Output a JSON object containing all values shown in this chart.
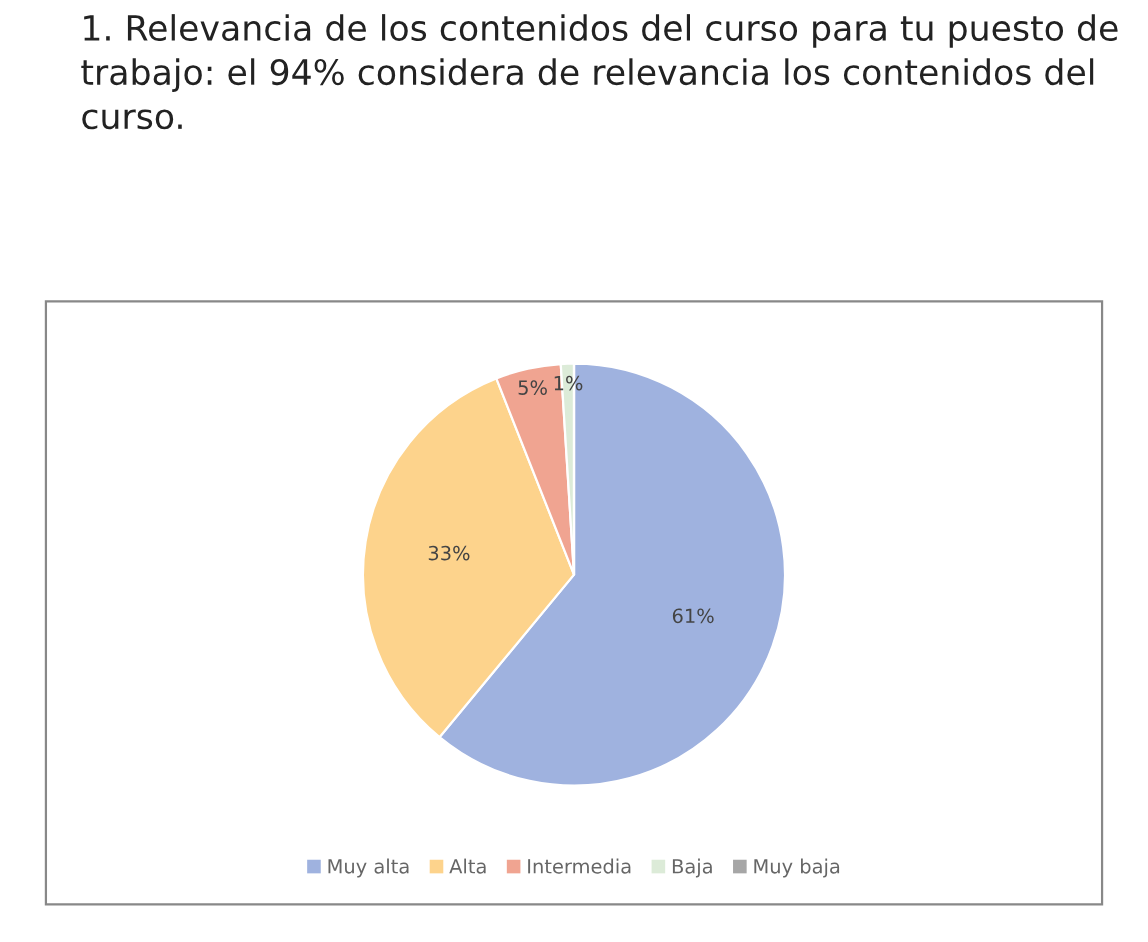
{
  "chart_data": {
    "type": "pie",
    "title": "1. Relevancia de los contenidos del curso para tu puesto de trabajo: el 94% considera de relevancia los contenidos del curso.",
    "categories": [
      "Muy alta",
      "Alta",
      "Intermedia",
      "Baja",
      "Muy baja"
    ],
    "values": [
      61,
      33,
      5,
      1,
      0
    ],
    "value_labels": [
      "61%",
      "33%",
      "5%",
      "1%",
      null
    ],
    "colors": [
      "#9fb2df",
      "#fdd38c",
      "#f0a491",
      "#dcebd8",
      "#a6a6a6"
    ],
    "legend": "bottom"
  }
}
